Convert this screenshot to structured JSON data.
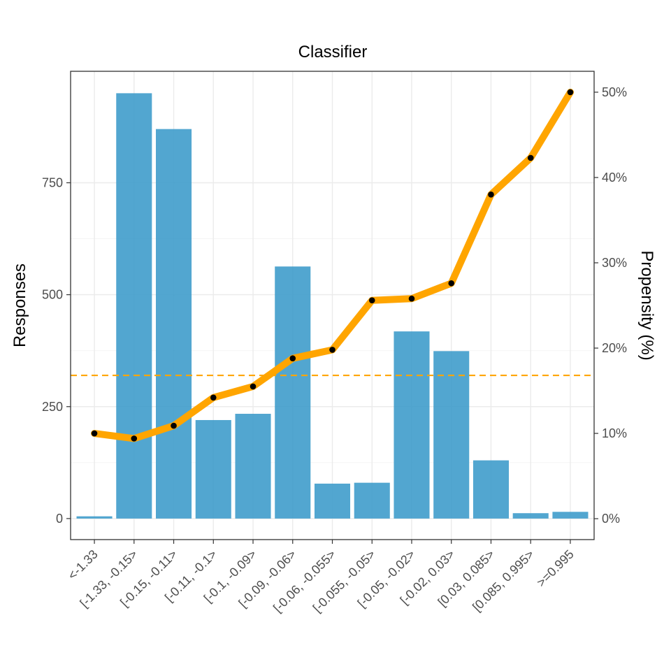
{
  "chart_data": {
    "type": "bar",
    "title": "Classifier",
    "xlabel": "",
    "ylabel": "Responses",
    "y2label": "Propensity (%)",
    "categories": [
      "<-1.33",
      "[-1.33, -0.15>",
      "[-0.15, -0.11>",
      "[-0.11, -0.1>",
      "[-0.1, -0.09>",
      "[-0.09, -0.06>",
      "[-0.06, -0.055>",
      "[-0.055, -0.05>",
      "[-0.05, -0.02>",
      "[-0.02, 0.03>",
      "[0.03, 0.085>",
      "[0.085, 0.995>",
      ">=0.995"
    ],
    "series": [
      {
        "type": "bar",
        "axis": "left",
        "color": "#3a9ac9",
        "values": [
          5,
          950,
          870,
          220,
          234,
          563,
          78,
          80,
          418,
          374,
          130,
          12,
          15
        ]
      },
      {
        "type": "line",
        "axis": "right",
        "color": "#ffa500",
        "values": [
          10.0,
          9.4,
          10.9,
          14.2,
          15.5,
          18.8,
          19.8,
          25.6,
          25.8,
          27.6,
          38.0,
          42.3,
          50.0
        ]
      }
    ],
    "reference_line": {
      "axis": "right",
      "value": 16.8,
      "style": "dashed",
      "color": "#ffa500"
    },
    "ylim": [
      -47,
      999
    ],
    "y_ticks": [
      0,
      250,
      500,
      750
    ],
    "y_tick_labels": [
      "0",
      "250",
      "500",
      "750"
    ],
    "y2lim": [
      -2.45,
      52.45
    ],
    "y2_ticks": [
      0,
      10,
      20,
      30,
      40,
      50
    ],
    "y2_tick_labels": [
      "0%",
      "10%",
      "20%",
      "30%",
      "40%",
      "50%"
    ],
    "grid": true,
    "legend": "none"
  }
}
